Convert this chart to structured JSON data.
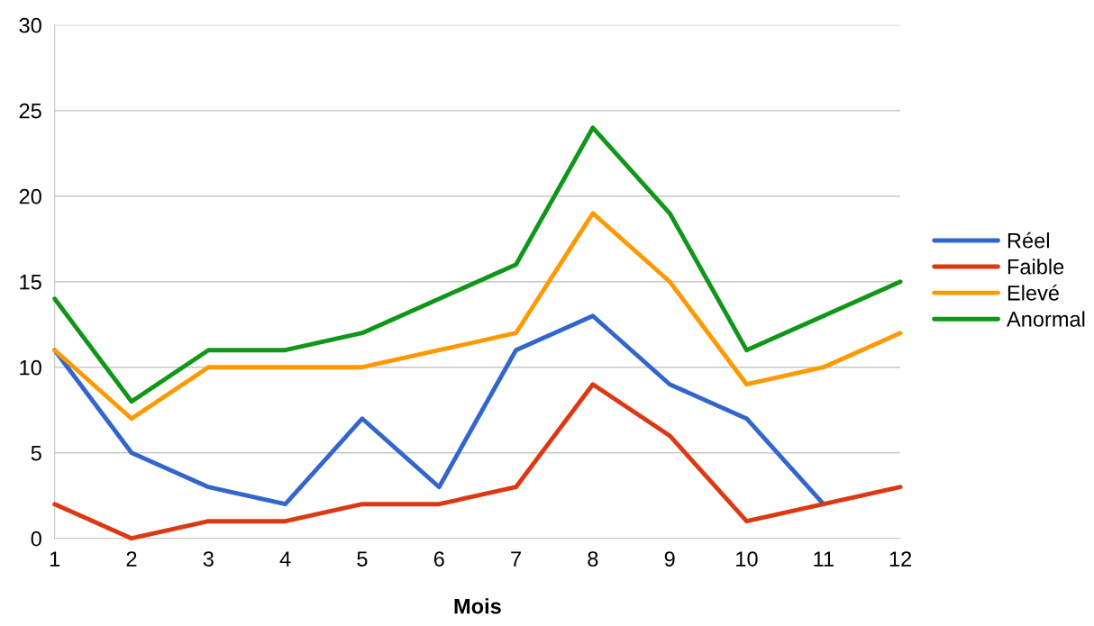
{
  "chart_data": {
    "type": "line",
    "xlabel": "Mois",
    "x": [
      1,
      2,
      3,
      4,
      5,
      6,
      7,
      8,
      9,
      10,
      11,
      12
    ],
    "series": [
      {
        "name": "Réel",
        "color": "#3366cc",
        "values": [
          11,
          5,
          3,
          2,
          7,
          3,
          11,
          13,
          9,
          7,
          2,
          null
        ]
      },
      {
        "name": "Faible",
        "color": "#dc3912",
        "values": [
          2,
          0,
          1,
          1,
          2,
          2,
          3,
          9,
          6,
          1,
          2,
          3
        ]
      },
      {
        "name": "Elevé",
        "color": "#ff9900",
        "values": [
          11,
          7,
          10,
          10,
          10,
          11,
          12,
          19,
          15,
          9,
          10,
          12
        ]
      },
      {
        "name": "Anormal",
        "color": "#109618",
        "values": [
          14,
          8,
          11,
          11,
          12,
          14,
          16,
          24,
          19,
          11,
          13,
          15
        ]
      }
    ],
    "xlim": [
      1,
      12
    ],
    "xticks": [
      1,
      2,
      3,
      4,
      5,
      6,
      7,
      8,
      9,
      10,
      11,
      12
    ],
    "ylim": [
      0,
      30
    ],
    "yticks": [
      0,
      5,
      10,
      15,
      20,
      25,
      30
    ],
    "grid": "y",
    "legend": "right",
    "marker": "none",
    "line_style": "solid"
  }
}
